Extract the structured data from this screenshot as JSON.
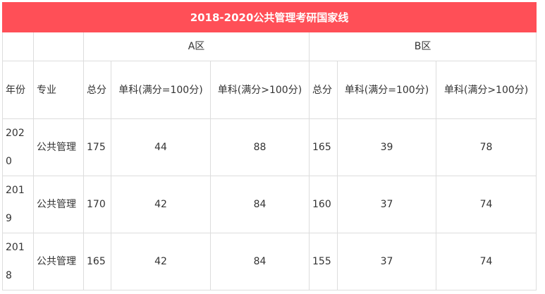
{
  "title": "2018-2020公共管理考研国家线",
  "header": {
    "groups": [
      "A区",
      "B区"
    ],
    "columns": [
      "年份",
      "专业",
      "总分",
      "单科(满分=100分)",
      "单科(满分>100分)",
      "总分",
      "单科(满分=100分)",
      "单科(满分>100分)"
    ]
  },
  "rows": [
    [
      2020,
      "公共管理",
      175,
      44,
      88,
      165,
      39,
      78
    ],
    [
      2019,
      "公共管理",
      170,
      42,
      84,
      160,
      37,
      74
    ],
    [
      2018,
      "公共管理",
      165,
      42,
      84,
      155,
      37,
      74
    ]
  ]
}
